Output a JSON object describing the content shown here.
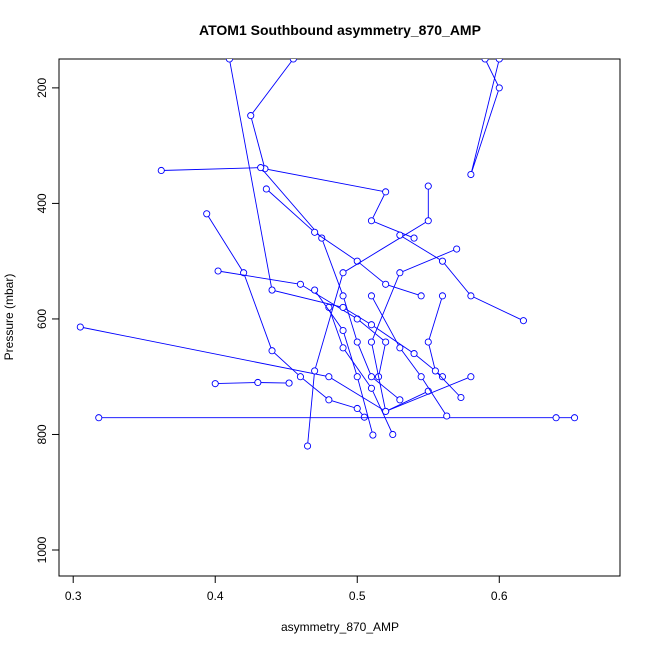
{
  "chart_data": {
    "type": "line",
    "title": "ATOM1 Southbound asymmetry_870_AMP",
    "xlabel": "asymmetry_870_AMP",
    "ylabel": "Pressure (mbar)",
    "xlim": [
      0.29,
      0.685
    ],
    "ylim": [
      1045,
      150
    ],
    "y_reversed": true,
    "x_ticks": [
      0.3,
      0.4,
      0.5,
      0.6
    ],
    "x_tick_labels": [
      "0.3",
      "0.4",
      "0.5",
      "0.6"
    ],
    "y_ticks": [
      200,
      400,
      600,
      800,
      1000
    ],
    "y_tick_labels": [
      "200",
      "400",
      "600",
      "800",
      "1000"
    ],
    "grid": false,
    "legend": "none",
    "series_color": "#0000ff",
    "marker": "open-circle",
    "series": [
      {
        "x": [
          0.455,
          0.425,
          0.435,
          0.52,
          0.51,
          0.54
        ],
        "y": [
          150,
          248,
          340,
          380,
          430,
          460
        ]
      },
      {
        "x": [
          0.362,
          0.432,
          0.475,
          0.49,
          0.5,
          0.51,
          0.53
        ],
        "y": [
          343,
          338,
          460,
          560,
          640,
          700,
          740
        ]
      },
      {
        "x": [
          0.394,
          0.42,
          0.44,
          0.46,
          0.48,
          0.5,
          0.505
        ],
        "y": [
          418,
          520,
          655,
          700,
          740,
          755,
          770
        ]
      },
      {
        "x": [
          0.402,
          0.46,
          0.5,
          0.52,
          0.515
        ],
        "y": [
          517,
          540,
          600,
          640,
          700
        ]
      },
      {
        "x": [
          0.305,
          0.48,
          0.52,
          0.55
        ],
        "y": [
          614,
          700,
          760,
          725
        ]
      },
      {
        "x": [
          0.318,
          0.64,
          0.653
        ],
        "y": [
          771,
          771,
          771
        ]
      },
      {
        "x": [
          0.4,
          0.43,
          0.452
        ],
        "y": [
          712,
          710,
          711
        ]
      },
      {
        "x": [
          0.41,
          0.44,
          0.49,
          0.51,
          0.54,
          0.56
        ],
        "y": [
          150,
          550,
          580,
          610,
          660,
          700
        ]
      },
      {
        "x": [
          0.436,
          0.47,
          0.5,
          0.52,
          0.545
        ],
        "y": [
          375,
          450,
          500,
          540,
          560
        ]
      },
      {
        "x": [
          0.55,
          0.55,
          0.49,
          0.47,
          0.465
        ],
        "y": [
          370,
          430,
          520,
          690,
          820
        ]
      },
      {
        "x": [
          0.59,
          0.6,
          0.58,
          0.6
        ],
        "y": [
          150,
          200,
          350,
          150
        ]
      },
      {
        "x": [
          0.57,
          0.53,
          0.51,
          0.52,
          0.58
        ],
        "y": [
          479,
          520,
          640,
          760,
          700
        ]
      },
      {
        "x": [
          0.617,
          0.58,
          0.56,
          0.53
        ],
        "y": [
          603,
          560,
          500,
          455
        ]
      },
      {
        "x": [
          0.573,
          0.555,
          0.55,
          0.56
        ],
        "y": [
          736,
          690,
          640,
          560
        ]
      },
      {
        "x": [
          0.563,
          0.545,
          0.53,
          0.51
        ],
        "y": [
          768,
          700,
          650,
          560
        ]
      },
      {
        "x": [
          0.525,
          0.51,
          0.49,
          0.48
        ],
        "y": [
          800,
          720,
          650,
          580
        ]
      },
      {
        "x": [
          0.511,
          0.5,
          0.49,
          0.47
        ],
        "y": [
          801,
          700,
          620,
          550
        ]
      }
    ]
  }
}
